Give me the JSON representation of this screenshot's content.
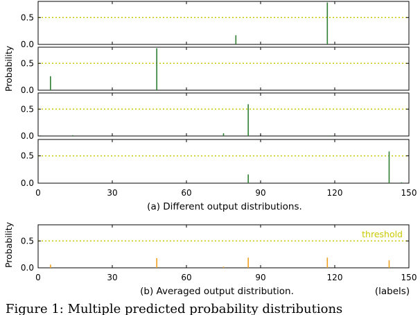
{
  "colors": {
    "distribution": "#2e7d32",
    "average": "#f0a020",
    "threshold": "#c8c800",
    "axis": "#000000"
  },
  "chart_data": [
    {
      "type": "bar",
      "panel": "a1",
      "xlim": [
        0,
        150
      ],
      "ylim": [
        0,
        0.8
      ],
      "yticks": [
        0.0,
        0.5
      ],
      "ytick_labels": [
        "0.0",
        "0.5"
      ],
      "threshold": 0.5,
      "x": [
        80,
        117
      ],
      "values": [
        0.17,
        0.78
      ]
    },
    {
      "type": "bar",
      "panel": "a2",
      "xlim": [
        0,
        150
      ],
      "ylim": [
        0,
        0.8
      ],
      "yticks": [
        0.0,
        0.5
      ],
      "ytick_labels": [
        "0.0",
        "0.5"
      ],
      "threshold": 0.5,
      "x": [
        5,
        48
      ],
      "values": [
        0.26,
        0.78
      ]
    },
    {
      "type": "bar",
      "panel": "a3",
      "xlim": [
        0,
        150
      ],
      "ylim": [
        0,
        0.8
      ],
      "yticks": [
        0.0,
        0.5
      ],
      "ytick_labels": [
        "0.0",
        "0.5"
      ],
      "threshold": 0.5,
      "x": [
        1,
        14,
        75,
        85,
        90,
        118
      ],
      "values": [
        0.01,
        0.015,
        0.05,
        0.59,
        0.02,
        0.01
      ]
    },
    {
      "type": "bar",
      "panel": "a4",
      "xlim": [
        0,
        150
      ],
      "ylim": [
        0,
        0.8
      ],
      "yticks": [
        0.0,
        0.5
      ],
      "ytick_labels": [
        "0.0",
        "0.5"
      ],
      "xticks": [
        0,
        30,
        60,
        90,
        120,
        150
      ],
      "xtick_labels": [
        "0",
        "30",
        "60",
        "90",
        "120",
        "150"
      ],
      "threshold": 0.5,
      "x": [
        85,
        142,
        147
      ],
      "values": [
        0.16,
        0.58,
        0.015
      ],
      "caption": "(a) Different output distributions."
    },
    {
      "type": "bar",
      "panel": "b",
      "xlim": [
        0,
        150
      ],
      "ylim": [
        0,
        0.8
      ],
      "yticks": [
        0.0,
        0.5
      ],
      "ytick_labels": [
        "0.0",
        "0.5"
      ],
      "xticks": [
        0,
        30,
        60,
        90,
        120,
        150
      ],
      "xtick_labels": [
        "0",
        "30",
        "60",
        "90",
        "120",
        "150"
      ],
      "threshold": 0.5,
      "threshold_label": "threshold",
      "x": [
        5,
        48,
        75,
        85,
        117,
        142
      ],
      "values": [
        0.06,
        0.18,
        0.02,
        0.19,
        0.19,
        0.14
      ],
      "caption": "(b) Averaged output distribution.",
      "xlabel": "(labels)"
    }
  ],
  "ylabel_top": "Probability",
  "ylabel_bottom": "Probability",
  "figure_caption": "Figure 1: Multiple predicted probability distributions"
}
